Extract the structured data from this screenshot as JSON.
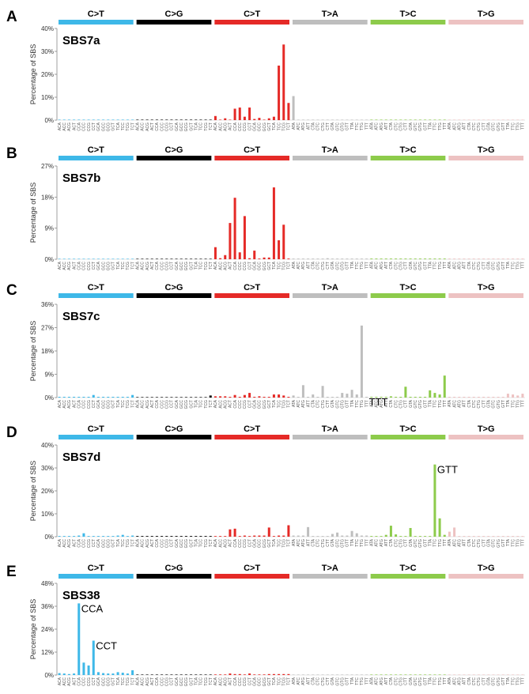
{
  "figure": {
    "ylabel": "Percentage of SBS",
    "mutation_types": [
      "C>T",
      "C>G",
      "C>T",
      "T>A",
      "T>C",
      "T>G"
    ],
    "type_colors": [
      "#3EB8E8",
      "#000000",
      "#E52A27",
      "#BEBEBE",
      "#8DCB4B",
      "#EDC2C2"
    ]
  },
  "chart_data": [
    {
      "type": "bar",
      "panel_letter": "A",
      "title": "SBS7a",
      "ylabel": "Percentage of SBS",
      "ylim": [
        0,
        40
      ],
      "yticks": [
        0,
        10,
        20,
        30,
        40
      ],
      "ytick_labels": [
        "0%",
        "10%",
        "20%",
        "30%",
        "40%"
      ],
      "groups": [
        "C>T",
        "C>G",
        "C>T",
        "T>A",
        "T>C",
        "T>G"
      ],
      "categories": [
        "ACA",
        "ACC",
        "ACG",
        "ACT",
        "CCA",
        "CCC",
        "CCG",
        "CCT",
        "GCA",
        "GCC",
        "GCG",
        "GCT",
        "TCA",
        "TCC",
        "TCG",
        "TCT",
        "ACA",
        "ACC",
        "ACG",
        "ACT",
        "CCA",
        "CCC",
        "CCG",
        "CCT",
        "GCA",
        "GCC",
        "GCG",
        "GCT",
        "TCA",
        "TCC",
        "TCG",
        "TCT",
        "ACA",
        "ACC",
        "ACG",
        "ACT",
        "CCA",
        "CCC",
        "CCG",
        "CCT",
        "GCA",
        "GCC",
        "GCG",
        "GCT",
        "TCA",
        "TCC",
        "TCG",
        "TCT",
        "ATA",
        "ATC",
        "ATG",
        "ATT",
        "CTA",
        "CTC",
        "CTG",
        "CTT",
        "GTA",
        "GTC",
        "GTG",
        "GTT",
        "TTA",
        "TTC",
        "TTG",
        "TTT",
        "ATA",
        "ATC",
        "ATG",
        "ATT",
        "CTA",
        "CTC",
        "CTG",
        "CTT",
        "GTA",
        "GTC",
        "GTG",
        "GTT",
        "TTA",
        "TTC",
        "TTG",
        "TTT",
        "ATA",
        "ATC",
        "ATG",
        "ATT",
        "CTA",
        "CTC",
        "CTG",
        "CTT",
        "GTA",
        "GTC",
        "GTG",
        "GTT",
        "TTA",
        "TTC",
        "TTG",
        "TTT"
      ],
      "values": [
        0.1,
        0.1,
        0.1,
        0.1,
        0.1,
        0.1,
        0.1,
        0.1,
        0.1,
        0.1,
        0.1,
        0.1,
        0.1,
        0.1,
        0.1,
        0.1,
        0.2,
        0.2,
        0.2,
        0.2,
        0.2,
        0.2,
        0.2,
        0.2,
        0.2,
        0.2,
        0.2,
        0.2,
        0.2,
        0.2,
        0.2,
        0.2,
        1.8,
        0.2,
        0.8,
        0.2,
        5.0,
        5.5,
        1.5,
        5.5,
        0.5,
        1.0,
        0.2,
        0.8,
        1.5,
        23.8,
        33.0,
        7.5,
        10.5,
        0.1,
        0.2,
        0.1,
        0.1,
        0.1,
        0.1,
        0.1,
        0.1,
        0.1,
        0.1,
        0.1,
        0.1,
        0.1,
        0.1,
        0.1,
        0.1,
        0.1,
        0.1,
        0.1,
        0.1,
        0.1,
        0.1,
        0.1,
        0.1,
        0.1,
        0.1,
        0.1,
        0.1,
        0.1,
        0.1,
        0.1,
        0.1,
        0.1,
        0.1,
        0.1,
        0.1,
        0.1,
        0.1,
        0.1,
        0.1,
        0.1,
        0.1,
        0.1,
        0.1,
        0.1,
        0.1,
        0.1
      ],
      "annotations": []
    },
    {
      "type": "bar",
      "panel_letter": "B",
      "title": "SBS7b",
      "ylabel": "Percentage of SBS",
      "ylim": [
        0,
        27
      ],
      "yticks": [
        0,
        9,
        18,
        27
      ],
      "ytick_labels": [
        "0%",
        "9%",
        "18%",
        "27%"
      ],
      "groups": [
        "C>T",
        "C>G",
        "C>T",
        "T>A",
        "T>C",
        "T>G"
      ],
      "categories": [
        "ACA",
        "ACC",
        "ACG",
        "ACT",
        "CCA",
        "CCC",
        "CCG",
        "CCT",
        "GCA",
        "GCC",
        "GCG",
        "GCT",
        "TCA",
        "TCC",
        "TCG",
        "TCT",
        "ACA",
        "ACC",
        "ACG",
        "ACT",
        "CCA",
        "CCC",
        "CCG",
        "CCT",
        "GCA",
        "GCC",
        "GCG",
        "GCT",
        "TCA",
        "TCC",
        "TCG",
        "TCT",
        "ACA",
        "ACC",
        "ACG",
        "ACT",
        "CCA",
        "CCC",
        "CCG",
        "CCT",
        "GCA",
        "GCC",
        "GCG",
        "GCT",
        "TCA",
        "TCC",
        "TCG",
        "TCT",
        "ATA",
        "ATC",
        "ATG",
        "ATT",
        "CTA",
        "CTC",
        "CTG",
        "CTT",
        "GTA",
        "GTC",
        "GTG",
        "GTT",
        "TTA",
        "TTC",
        "TTG",
        "TTT",
        "ATA",
        "ATC",
        "ATG",
        "ATT",
        "CTA",
        "CTC",
        "CTG",
        "CTT",
        "GTA",
        "GTC",
        "GTG",
        "GTT",
        "TTA",
        "TTC",
        "TTG",
        "TTT",
        "ATA",
        "ATC",
        "ATG",
        "ATT",
        "CTA",
        "CTC",
        "CTG",
        "CTT",
        "GTA",
        "GTC",
        "GTG",
        "GTT",
        "TTA",
        "TTC",
        "TTG",
        "TTT"
      ],
      "values": [
        0.1,
        0.1,
        0.1,
        0.1,
        0.1,
        0.1,
        0.1,
        0.1,
        0.1,
        0.1,
        0.1,
        0.1,
        0.1,
        0.1,
        0.1,
        0.1,
        0.1,
        0.1,
        0.1,
        0.1,
        0.1,
        0.1,
        0.1,
        0.1,
        0.1,
        0.1,
        0.1,
        0.1,
        0.1,
        0.1,
        0.1,
        0.1,
        3.5,
        0.3,
        1.2,
        10.5,
        17.8,
        2.0,
        12.5,
        0.3,
        2.5,
        0.2,
        0.5,
        0.5,
        20.8,
        5.5,
        10.0,
        0.2,
        0.2,
        0.2,
        0.2,
        0.2,
        0.2,
        0.2,
        0.2,
        0.3,
        0.2,
        0.2,
        0.2,
        0.2,
        0.2,
        0.2,
        0.2,
        0.2,
        0.2,
        0.2,
        0.2,
        0.2,
        0.2,
        0.2,
        0.2,
        0.2,
        0.2,
        0.2,
        0.2,
        0.2,
        0.2,
        0.2,
        0.2,
        0.2,
        0.2,
        0.2,
        0.2,
        0.2,
        0.2,
        0.2,
        0.2,
        0.2,
        0.2,
        0.2,
        0.2,
        0.2,
        0.2,
        0.2,
        0.2,
        0.2
      ],
      "annotations": []
    },
    {
      "type": "bar",
      "panel_letter": "C",
      "title": "SBS7c",
      "ylabel": "Percentage of SBS",
      "ylim": [
        0,
        36
      ],
      "yticks": [
        0,
        9,
        18,
        27,
        36
      ],
      "ytick_labels": [
        "0%",
        "9%",
        "18%",
        "27%",
        "36%"
      ],
      "groups": [
        "C>T",
        "C>G",
        "C>T",
        "T>A",
        "T>C",
        "T>G"
      ],
      "categories": [
        "ACA",
        "ACC",
        "ACG",
        "ACT",
        "CCA",
        "CCC",
        "CCG",
        "CCT",
        "GCA",
        "GCC",
        "GCG",
        "GCT",
        "TCA",
        "TCC",
        "TCG",
        "TCT",
        "ACA",
        "ACC",
        "ACG",
        "ACT",
        "CCA",
        "CCC",
        "CCG",
        "CCT",
        "GCA",
        "GCC",
        "GCG",
        "GCT",
        "TCA",
        "TCC",
        "TCG",
        "TCT",
        "ACA",
        "ACC",
        "ACG",
        "ACT",
        "CCA",
        "CCC",
        "CCG",
        "CCT",
        "GCA",
        "GCC",
        "GCG",
        "GCT",
        "TCA",
        "TCC",
        "TCG",
        "TCT",
        "ATA",
        "ATC",
        "ATG",
        "ATT",
        "CTA",
        "CTC",
        "CTG",
        "CTT",
        "GTA",
        "GTC",
        "GTG",
        "GTT",
        "TTA",
        "TTC",
        "TTG",
        "TTT",
        "ATA",
        "ATC",
        "ATG",
        "ATT",
        "CTA",
        "CTC",
        "CTG",
        "CTT",
        "GTA",
        "GTC",
        "GTG",
        "GTT",
        "TTA",
        "TTC",
        "TTG",
        "TTT",
        "ATA",
        "ATC",
        "ATG",
        "ATT",
        "CTA",
        "CTC",
        "CTG",
        "CTT",
        "GTA",
        "GTC",
        "GTG",
        "GTT",
        "TTA",
        "TTC",
        "TTG",
        "TTT"
      ],
      "values": [
        0.3,
        0.3,
        0.3,
        0.3,
        0.3,
        0.3,
        0.3,
        1.0,
        0.3,
        0.3,
        0.3,
        0.3,
        0.3,
        0.3,
        0.3,
        1.0,
        0.2,
        0.2,
        0.2,
        0.2,
        0.2,
        0.2,
        0.2,
        0.2,
        0.2,
        0.2,
        0.2,
        0.2,
        0.2,
        0.2,
        0.2,
        0.8,
        0.5,
        0.5,
        0.5,
        0.3,
        1.0,
        0.3,
        1.0,
        1.8,
        0.3,
        0.5,
        0.3,
        0.3,
        1.2,
        1.2,
        0.8,
        0.3,
        0.8,
        0.3,
        4.8,
        0.3,
        1.2,
        0.3,
        4.5,
        0.3,
        0.3,
        0.3,
        1.8,
        1.5,
        3.0,
        1.2,
        27.8,
        0.3,
        0.3,
        0.3,
        0.3,
        0.3,
        0.5,
        0.3,
        0.3,
        4.2,
        0.3,
        0.3,
        0.3,
        0.3,
        2.8,
        1.8,
        1.2,
        8.5,
        0.3,
        0.3,
        0.3,
        0.3,
        0.3,
        0.3,
        0.3,
        0.3,
        0.3,
        0.3,
        0.3,
        0.3,
        1.5,
        1.2,
        0.8,
        1.5
      ],
      "annotations": [
        {
          "index": 63,
          "text": "TTT"
        }
      ]
    },
    {
      "type": "bar",
      "panel_letter": "D",
      "title": "SBS7d",
      "ylabel": "Percentage of SBS",
      "ylim": [
        0,
        40
      ],
      "yticks": [
        0,
        10,
        20,
        30,
        40
      ],
      "ytick_labels": [
        "0%",
        "10%",
        "20%",
        "30%",
        "40%"
      ],
      "groups": [
        "C>T",
        "C>G",
        "C>T",
        "T>A",
        "T>C",
        "T>G"
      ],
      "categories": [
        "ACA",
        "ACC",
        "ACG",
        "ACT",
        "CCA",
        "CCC",
        "CCG",
        "CCT",
        "GCA",
        "GCC",
        "GCG",
        "GCT",
        "TCA",
        "TCC",
        "TCG",
        "TCT",
        "ACA",
        "ACC",
        "ACG",
        "ACT",
        "CCA",
        "CCC",
        "CCG",
        "CCT",
        "GCA",
        "GCC",
        "GCG",
        "GCT",
        "TCA",
        "TCC",
        "TCG",
        "TCT",
        "ACA",
        "ACC",
        "ACG",
        "ACT",
        "CCA",
        "CCC",
        "CCG",
        "CCT",
        "GCA",
        "GCC",
        "GCG",
        "GCT",
        "TCA",
        "TCC",
        "TCG",
        "TCT",
        "ATA",
        "ATC",
        "ATG",
        "ATT",
        "CTA",
        "CTC",
        "CTG",
        "CTT",
        "GTA",
        "GTC",
        "GTG",
        "GTT",
        "TTA",
        "TTC",
        "TTG",
        "TTT",
        "ATA",
        "ATC",
        "ATG",
        "ATT",
        "CTA",
        "CTC",
        "CTG",
        "CTT",
        "GTA",
        "GTC",
        "GTG",
        "GTT",
        "TTA",
        "TTC",
        "TTG",
        "TTT",
        "ATA",
        "ATC",
        "ATG",
        "ATT",
        "CTA",
        "CTC",
        "CTG",
        "CTT",
        "GTA",
        "GTC",
        "GTG",
        "GTT",
        "TTA",
        "TTC",
        "TTG",
        "TTT"
      ],
      "values": [
        0.3,
        0.3,
        0.3,
        0.3,
        0.5,
        1.5,
        0.3,
        0.3,
        0.3,
        0.3,
        0.3,
        0.3,
        0.5,
        0.8,
        0.3,
        0.5,
        0.3,
        0.3,
        0.3,
        0.3,
        0.3,
        0.3,
        0.3,
        0.3,
        0.3,
        0.3,
        0.3,
        0.3,
        0.3,
        0.3,
        0.3,
        0.3,
        0.3,
        0.3,
        0.3,
        3.2,
        3.5,
        0.3,
        0.5,
        0.3,
        0.5,
        0.5,
        0.5,
        4.0,
        0.3,
        0.5,
        0.5,
        5.0,
        0.5,
        0.5,
        0.5,
        4.2,
        0.3,
        0.3,
        0.3,
        0.3,
        1.2,
        1.8,
        0.5,
        0.5,
        2.5,
        1.5,
        0.5,
        0.5,
        0.3,
        0.3,
        0.3,
        0.8,
        4.8,
        1.0,
        0.3,
        0.3,
        3.8,
        0.3,
        0.3,
        0.3,
        0.3,
        31.5,
        8.0,
        0.8,
        2.2,
        4.0,
        0.3,
        0.3,
        0.3,
        0.3,
        0.3,
        0.3,
        0.3,
        0.3,
        0.3,
        0.3,
        0.3,
        0.3,
        0.3,
        0.3
      ],
      "annotations": [
        {
          "index": 77,
          "text": "GTT"
        }
      ]
    },
    {
      "type": "bar",
      "panel_letter": "E",
      "title": "SBS38",
      "ylabel": "Percentage of SBS",
      "ylim": [
        0,
        48
      ],
      "yticks": [
        0,
        12,
        24,
        36,
        48
      ],
      "ytick_labels": [
        "0%",
        "12%",
        "24%",
        "36%",
        "48%"
      ],
      "groups": [
        "C>T",
        "C>G",
        "C>T",
        "T>A",
        "T>C",
        "T>G"
      ],
      "categories": [
        "ACA",
        "ACC",
        "ACG",
        "ACT",
        "CCA",
        "CCC",
        "CCG",
        "CCT",
        "GCA",
        "GCC",
        "GCG",
        "GCT",
        "TCA",
        "TCC",
        "TCG",
        "TCT",
        "ACA",
        "ACC",
        "ACG",
        "ACT",
        "CCA",
        "CCC",
        "CCG",
        "CCT",
        "GCA",
        "GCC",
        "GCG",
        "GCT",
        "TCA",
        "TCC",
        "TCG",
        "TCT",
        "ACA",
        "ACC",
        "ACG",
        "ACT",
        "CCA",
        "CCC",
        "CCG",
        "CCT",
        "GCA",
        "GCC",
        "GCG",
        "GCT",
        "TCA",
        "TCC",
        "TCG",
        "TCT",
        "ATA",
        "ATC",
        "ATG",
        "ATT",
        "CTA",
        "CTC",
        "CTG",
        "CTT",
        "GTA",
        "GTC",
        "GTG",
        "GTT",
        "TTA",
        "TTC",
        "TTG",
        "TTT",
        "ATA",
        "ATC",
        "ATG",
        "ATT",
        "CTA",
        "CTC",
        "CTG",
        "CTT",
        "GTA",
        "GTC",
        "GTG",
        "GTT",
        "TTA",
        "TTC",
        "TTG",
        "TTT",
        "ATA",
        "ATC",
        "ATG",
        "ATT",
        "CTA",
        "CTC",
        "CTG",
        "CTT",
        "GTA",
        "GTC",
        "GTG",
        "GTT",
        "TTA",
        "TTC",
        "TTG",
        "TTT"
      ],
      "values": [
        1.0,
        0.8,
        0.5,
        0.8,
        37.5,
        6.5,
        5.0,
        18.0,
        1.5,
        1.0,
        0.8,
        0.8,
        1.5,
        1.2,
        0.8,
        2.5,
        0.2,
        0.2,
        0.2,
        0.2,
        0.2,
        0.2,
        0.2,
        0.2,
        0.2,
        0.2,
        0.2,
        0.2,
        0.2,
        0.2,
        0.2,
        0.2,
        0.3,
        0.3,
        0.3,
        0.8,
        0.5,
        0.5,
        0.3,
        0.8,
        0.3,
        0.3,
        0.3,
        0.5,
        0.5,
        0.5,
        0.5,
        0.5,
        0.2,
        0.2,
        0.2,
        0.2,
        0.2,
        0.2,
        0.2,
        0.2,
        0.2,
        0.2,
        0.2,
        0.2,
        0.2,
        0.2,
        0.2,
        0.2,
        0.2,
        0.2,
        0.2,
        0.2,
        0.2,
        0.2,
        0.2,
        0.2,
        0.2,
        0.2,
        0.2,
        0.2,
        0.2,
        0.2,
        0.2,
        0.2,
        0.2,
        0.2,
        0.2,
        0.2,
        0.2,
        0.2,
        0.2,
        0.2,
        0.2,
        0.2,
        0.2,
        0.2,
        0.2,
        0.2,
        0.2,
        0.2
      ],
      "annotations": [
        {
          "index": 4,
          "text": "CCA"
        },
        {
          "index": 7,
          "text": "CCT"
        }
      ]
    }
  ]
}
